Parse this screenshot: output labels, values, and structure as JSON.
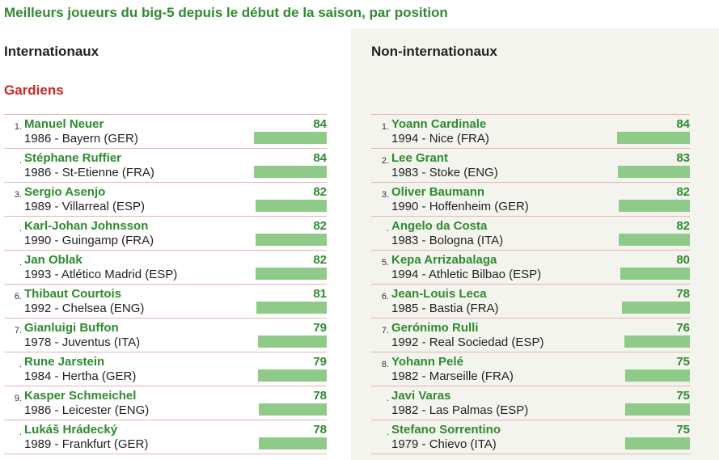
{
  "title": "Meilleurs joueurs du big-5 depuis le début de la saison, par position",
  "headers": {
    "left": "Internationaux",
    "right": "Non-internationaux"
  },
  "section": "Gardiens",
  "colors": {
    "accent": "#2e8b2e",
    "section": "#c62828",
    "bar": "#8fca88",
    "panel": "#f4f4ef"
  },
  "chart_data": [
    {
      "type": "bar",
      "title": "Internationaux",
      "categories": [
        "Manuel Neuer",
        "Stéphane Ruffier",
        "Sergio Asenjo",
        "Karl-Johan Johnsson",
        "Jan Oblak",
        "Thibaut Courtois",
        "Gianluigi Buffon",
        "Rune Jarstein",
        "Kasper Schmeichel",
        "Lukáš Hrádecký"
      ],
      "values": [
        84,
        84,
        82,
        82,
        82,
        81,
        79,
        79,
        78,
        78
      ],
      "rows": [
        {
          "rank": "1.",
          "name": "Manuel Neuer",
          "info": "1986 - Bayern (GER)",
          "score": 84
        },
        {
          "rank": ".",
          "name": "Stéphane Ruffier",
          "info": "1986 - St-Etienne (FRA)",
          "score": 84
        },
        {
          "rank": "3.",
          "name": "Sergio Asenjo",
          "info": "1989 - Villarreal (ESP)",
          "score": 82
        },
        {
          "rank": ".",
          "name": "Karl-Johan Johnsson",
          "info": "1990 - Guingamp (FRA)",
          "score": 82
        },
        {
          "rank": ".",
          "name": "Jan Oblak",
          "info": "1993 - Atlético Madrid (ESP)",
          "score": 82
        },
        {
          "rank": "6.",
          "name": "Thibaut Courtois",
          "info": "1992 - Chelsea (ENG)",
          "score": 81
        },
        {
          "rank": "7.",
          "name": "Gianluigi Buffon",
          "info": "1978 - Juventus (ITA)",
          "score": 79
        },
        {
          "rank": ".",
          "name": "Rune Jarstein",
          "info": "1984 - Hertha (GER)",
          "score": 79
        },
        {
          "rank": "9.",
          "name": "Kasper Schmeichel",
          "info": "1986 - Leicester (ENG)",
          "score": 78
        },
        {
          "rank": ".",
          "name": "Lukáš Hrádecký",
          "info": "1989 - Frankfurt (GER)",
          "score": 78
        }
      ]
    },
    {
      "type": "bar",
      "title": "Non-internationaux",
      "categories": [
        "Yoann Cardinale",
        "Lee Grant",
        "Oliver Baumann",
        "Angelo da Costa",
        "Kepa Arrizabalaga",
        "Jean-Louis Leca",
        "Gerónimo Rulli",
        "Yohann Pelé",
        "Javi Varas",
        "Stefano Sorrentino"
      ],
      "values": [
        84,
        83,
        82,
        82,
        80,
        78,
        76,
        75,
        75,
        75
      ],
      "rows": [
        {
          "rank": "1.",
          "name": "Yoann Cardinale",
          "info": "1994 - Nice (FRA)",
          "score": 84
        },
        {
          "rank": "2.",
          "name": "Lee Grant",
          "info": "1983 - Stoke (ENG)",
          "score": 83
        },
        {
          "rank": "3.",
          "name": "Oliver Baumann",
          "info": "1990 - Hoffenheim (GER)",
          "score": 82
        },
        {
          "rank": ".",
          "name": "Angelo da Costa",
          "info": "1983 - Bologna (ITA)",
          "score": 82
        },
        {
          "rank": "5.",
          "name": "Kepa Arrizabalaga",
          "info": "1994 - Athletic Bilbao (ESP)",
          "score": 80
        },
        {
          "rank": "6.",
          "name": "Jean-Louis Leca",
          "info": "1985 - Bastia (FRA)",
          "score": 78
        },
        {
          "rank": "7.",
          "name": "Gerónimo Rulli",
          "info": "1992 - Real Sociedad (ESP)",
          "score": 76
        },
        {
          "rank": "8.",
          "name": "Yohann Pelé",
          "info": "1982 - Marseille (FRA)",
          "score": 75
        },
        {
          "rank": ".",
          "name": "Javi Varas",
          "info": "1982 - Las Palmas (ESP)",
          "score": 75
        },
        {
          "rank": ".",
          "name": "Stefano Sorrentino",
          "info": "1979 - Chievo (ITA)",
          "score": 75
        }
      ]
    }
  ]
}
